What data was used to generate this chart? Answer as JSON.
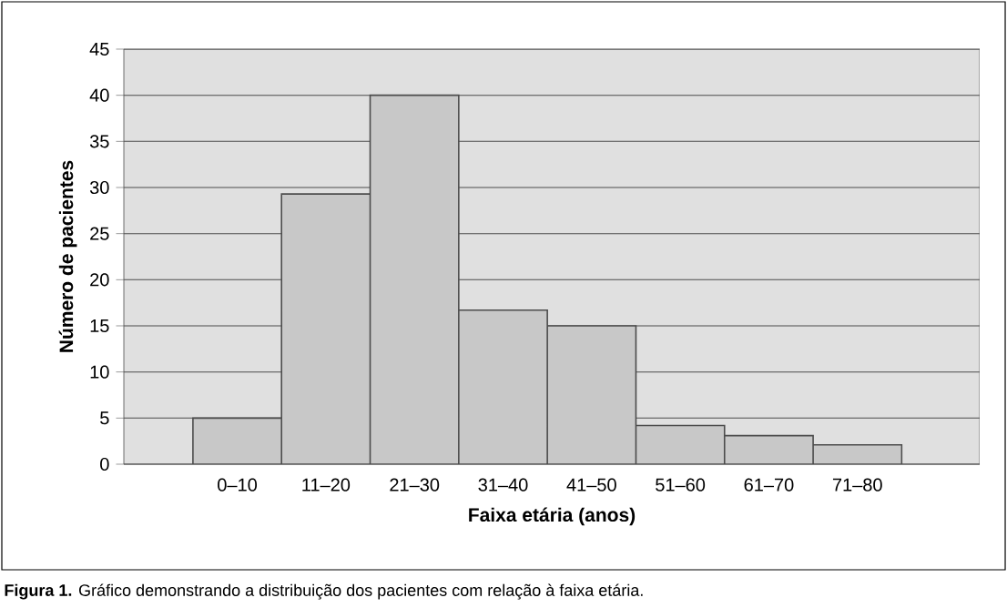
{
  "chart_data": {
    "type": "bar",
    "categories": [
      "0–10",
      "11–20",
      "21–30",
      "31–40",
      "41–50",
      "51–60",
      "61–70",
      "71–80"
    ],
    "values": [
      5,
      29.3,
      40,
      16.7,
      15,
      4.2,
      3.1,
      2.1
    ],
    "color": "#c8c8c8",
    "xlabel": "Faixa etária (anos)",
    "ylabel": "Número de pacientes",
    "ylim": [
      0,
      45
    ],
    "yticks": [
      0,
      5,
      10,
      15,
      20,
      25,
      30,
      35,
      40,
      45
    ],
    "grid": "y",
    "annotations": [
      "**Figura 1.** Gráfico demonstrando a distribuição dos pacientes com relação à faixa etária."
    ]
  }
}
